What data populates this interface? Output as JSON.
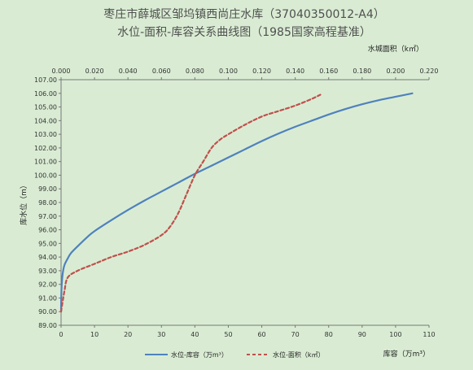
{
  "chart_data": {
    "type": "line",
    "title": "枣庄市薛城区邹坞镇西尚庄水库（37040350012-A4）",
    "subtitle": "水位-面积-库容关系曲线图（1985国家高程基准）",
    "ylabel": "库水位（m）",
    "xlabel_bottom": "库容（万m³）",
    "xlabel_top": "水城面积（k㎡）",
    "ylim": [
      89.0,
      107.0
    ],
    "xlim_bottom": [
      0,
      110
    ],
    "xlim_top": [
      0.0,
      0.22
    ],
    "y_ticks": [
      "89.00",
      "90.00",
      "91.00",
      "92.00",
      "93.00",
      "94.00",
      "95.00",
      "96.00",
      "97.00",
      "98.00",
      "99.00",
      "100.00",
      "101.00",
      "102.00",
      "103.00",
      "104.00",
      "105.00",
      "106.00",
      "107.00"
    ],
    "x_ticks_bottom": [
      "0",
      "10",
      "20",
      "30",
      "40",
      "50",
      "60",
      "70",
      "80",
      "90",
      "100",
      "110"
    ],
    "x_ticks_top": [
      "0.000",
      "0.020",
      "0.040",
      "0.060",
      "0.080",
      "0.100",
      "0.120",
      "0.140",
      "0.160",
      "0.180",
      "0.200",
      "0.220"
    ],
    "grid": false,
    "legend_position": "bottom",
    "series": [
      {
        "name": "水位-库容（万m³）",
        "axis": "bottom",
        "color": "#4f81bd",
        "style": "solid",
        "x": [
          0,
          0.05,
          0.2,
          0.5,
          1,
          2,
          3,
          5,
          8,
          10,
          15,
          20,
          25,
          30,
          35,
          40,
          45,
          50,
          55,
          60,
          65,
          70,
          75,
          80,
          85,
          90,
          95,
          100,
          105
        ],
        "y": [
          90.0,
          91.0,
          92.0,
          92.8,
          93.4,
          93.9,
          94.3,
          94.8,
          95.5,
          95.9,
          96.7,
          97.45,
          98.15,
          98.8,
          99.45,
          100.1,
          100.7,
          101.3,
          101.9,
          102.5,
          103.05,
          103.55,
          104.0,
          104.45,
          104.85,
          105.2,
          105.5,
          105.75,
          106.0
        ]
      },
      {
        "name": "水位-面积（k㎡）",
        "axis": "top",
        "color": "#c0504d",
        "style": "dashed",
        "x": [
          0.0,
          0.002,
          0.004,
          0.01,
          0.02,
          0.03,
          0.04,
          0.05,
          0.06,
          0.065,
          0.07,
          0.075,
          0.08,
          0.085,
          0.09,
          0.095,
          0.1,
          0.11,
          0.12,
          0.13,
          0.14,
          0.15,
          0.155
        ],
        "y": [
          90.0,
          91.5,
          92.5,
          93.0,
          93.5,
          94.0,
          94.4,
          94.9,
          95.6,
          96.2,
          97.2,
          98.6,
          100.0,
          101.0,
          102.0,
          102.6,
          103.0,
          103.7,
          104.3,
          104.7,
          105.1,
          105.6,
          105.9
        ]
      }
    ]
  }
}
